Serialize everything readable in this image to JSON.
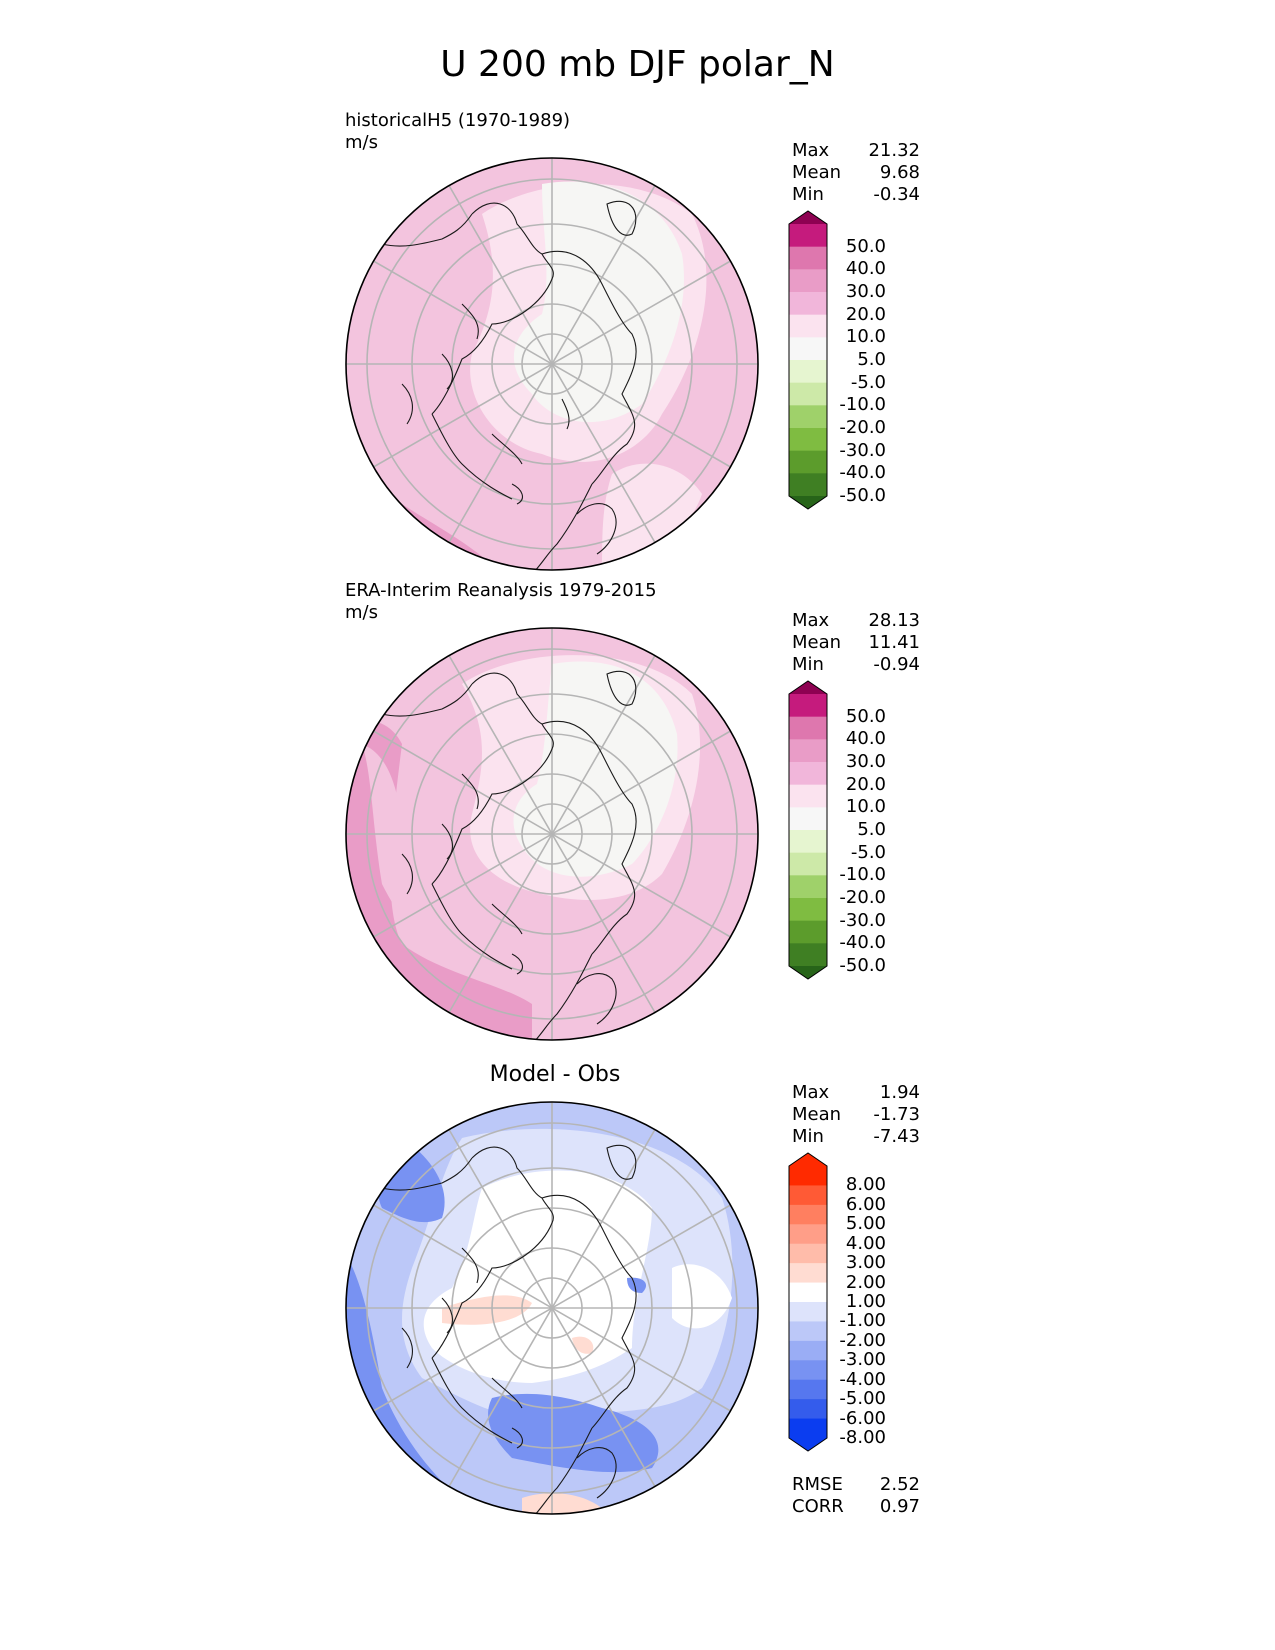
{
  "title": "U 200 mb DJF polar_N",
  "panels": [
    {
      "name": "model",
      "title": "historicalH5 (1970-1989)",
      "units": "m/s",
      "stats": {
        "max_label": "Max",
        "max": "21.32",
        "mean_label": "Mean",
        "mean": "9.68",
        "min_label": "Min",
        "min": "-0.34"
      },
      "colorbar": {
        "labels": [
          "50.0",
          "40.0",
          "30.0",
          "20.0",
          "10.0",
          "5.0",
          "-5.0",
          "-10.0",
          "-20.0",
          "-30.0",
          "-40.0",
          "-50.0"
        ],
        "colors": [
          "#8e0152",
          "#c51b7d",
          "#de77ae",
          "#f1b6da",
          "#fde0ef",
          "#f7f7f7",
          "#e6f5d0",
          "#b8e186",
          "#7fbc41",
          "#4d9221",
          "#276419",
          "#1b4a10",
          "#2a6a1a",
          "#3f8d2a"
        ]
      },
      "fill_colors": {
        "base": "#f3c4de",
        "light": "#fbe3ef",
        "white": "#f6f6f4",
        "mid": "#e99cc7"
      }
    },
    {
      "name": "obs",
      "title": "ERA-Interim Reanalysis 1979-2015",
      "units": "m/s",
      "stats": {
        "max_label": "Max",
        "max": "28.13",
        "mean_label": "Mean",
        "mean": "11.41",
        "min_label": "Min",
        "min": "-0.94"
      },
      "colorbar": {
        "labels": [
          "50.0",
          "40.0",
          "30.0",
          "20.0",
          "10.0",
          "5.0",
          "-5.0",
          "-10.0",
          "-20.0",
          "-30.0",
          "-40.0",
          "-50.0"
        ]
      },
      "fill_colors": {
        "base": "#f3c4de",
        "light": "#fbe3ef",
        "white": "#f6f6f4",
        "mid": "#e99cc7"
      }
    },
    {
      "name": "diff",
      "title": "Model - Obs",
      "stats": {
        "max_label": "Max",
        "max": "1.94",
        "mean_label": "Mean",
        "mean": "-1.73",
        "min_label": "Min",
        "min": "-7.43"
      },
      "colorbar": {
        "labels": [
          "8.00",
          "6.00",
          "5.00",
          "4.00",
          "3.00",
          "2.00",
          "1.00",
          "-1.00",
          "-2.00",
          "-3.00",
          "-4.00",
          "-5.00",
          "-6.00",
          "-8.00"
        ],
        "colors": [
          "#ff2a00",
          "#ff5a35",
          "#ff7f60",
          "#ff9e88",
          "#ffbcaa",
          "#ffdcd2",
          "#ffffff",
          "#dde3fb",
          "#bcc8f8",
          "#9aadf5",
          "#7892f2",
          "#5677ef",
          "#345cec",
          "#0b3df0"
        ]
      },
      "fill_colors": {
        "base": "#bcc8f8",
        "light": "#dde3fb",
        "white": "#ffffff",
        "mid": "#7892f2",
        "dark": "#345cec",
        "pink": "#ffdcd2"
      },
      "bottom": {
        "rmse_label": "RMSE",
        "rmse": "2.52",
        "corr_label": "CORR",
        "corr": "0.97"
      }
    }
  ],
  "pink_colors": [
    "#8e0152",
    "#c51b7d",
    "#de77ae",
    "#e99cc7",
    "#f1b6da",
    "#fbe3ef",
    "#f7f7f7",
    "#e6f5d0",
    "#cde9a8",
    "#9fd16a",
    "#7fbc41",
    "#5c9c2c",
    "#3f7f23",
    "#276419"
  ]
}
